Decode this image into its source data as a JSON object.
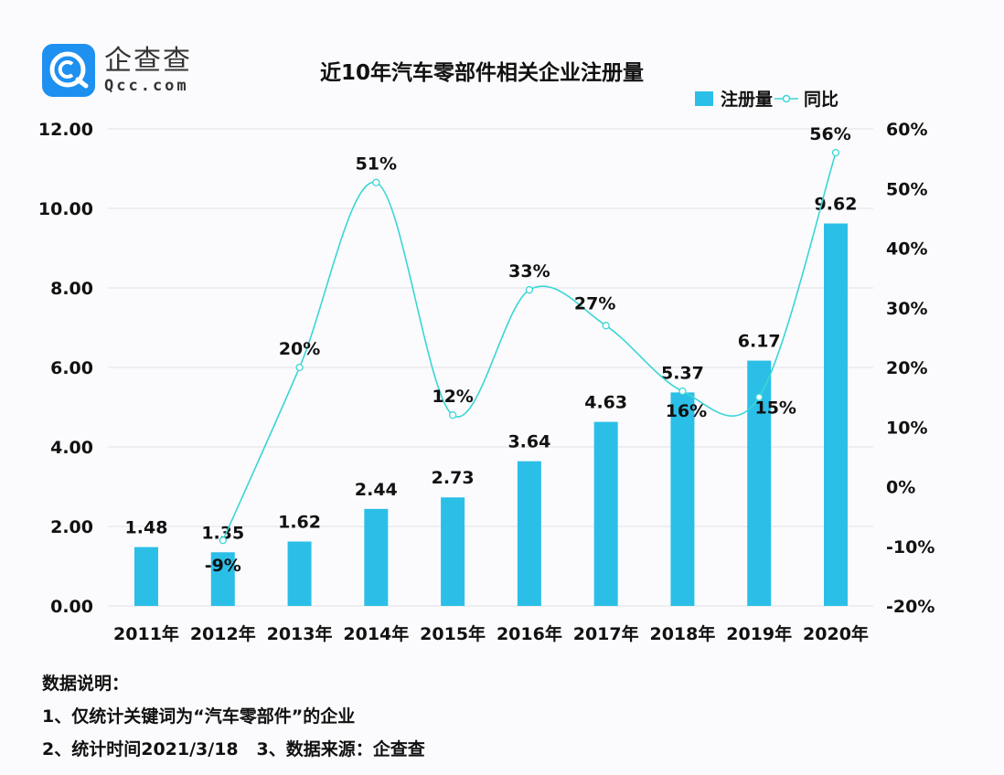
{
  "brand": {
    "name_cn": "企查查",
    "name_en": "Qcc.com",
    "color": "#1e90f0"
  },
  "chart_data": {
    "type": "bar",
    "title": "近10年汽车零部件相关企业注册量",
    "categories": [
      "2011年",
      "2012年",
      "2013年",
      "2014年",
      "2015年",
      "2016年",
      "2017年",
      "2018年",
      "2019年",
      "2020年"
    ],
    "series": [
      {
        "name": "注册量",
        "type": "bar",
        "axis": "left",
        "color": "#2bbfe8",
        "values": [
          1.48,
          1.35,
          1.62,
          2.44,
          2.73,
          3.64,
          4.63,
          5.37,
          6.17,
          9.62
        ],
        "labels": [
          "1.48",
          "1.35",
          "1.62",
          "2.44",
          "2.73",
          "3.64",
          "4.63",
          "5.37",
          "6.17",
          "9.62"
        ]
      },
      {
        "name": "同比",
        "type": "line",
        "smooth": true,
        "axis": "right",
        "color": "#3ad6d6",
        "values": [
          null,
          -9,
          20,
          51,
          12,
          33,
          27,
          16,
          15,
          56
        ],
        "labels": [
          "",
          "-9%",
          "20%",
          "51%",
          "12%",
          "33%",
          "27%",
          "16%",
          "15%",
          "56%"
        ]
      }
    ],
    "y_left": {
      "min": 0,
      "max": 12,
      "step": 2,
      "ticks": [
        "0.00",
        "2.00",
        "4.00",
        "6.00",
        "8.00",
        "10.00",
        "12.00"
      ]
    },
    "y_right": {
      "min": -20,
      "max": 60,
      "step": 10,
      "ticks": [
        "-20%",
        "-10%",
        "0%",
        "10%",
        "20%",
        "30%",
        "40%",
        "50%",
        "60%"
      ]
    },
    "grid": true,
    "legend": {
      "position": "top-right",
      "items": [
        "注册量",
        "同比"
      ]
    }
  },
  "notes": {
    "heading": "数据说明：",
    "line1": "1、仅统计关键词为“汽车零部件”的企业",
    "line2": "2、统计时间2021/3/18   3、数据来源：企查查"
  }
}
